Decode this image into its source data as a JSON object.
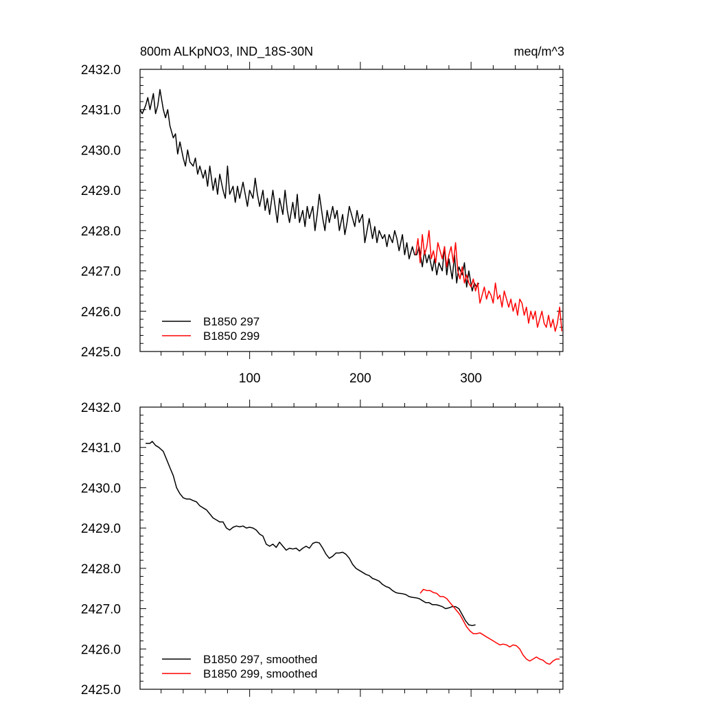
{
  "chart_data": [
    {
      "type": "line",
      "title_left": "800m ALKpNO3, IND_18S-30N",
      "title_right": "meq/m^3",
      "xlim": [
        1,
        383
      ],
      "ylim": [
        2425.0,
        2432.0
      ],
      "x_ticks": [
        100,
        200,
        300
      ],
      "y_ticks": [
        "2425.0",
        "2426.0",
        "2427.0",
        "2428.0",
        "2429.0",
        "2430.0",
        "2431.0",
        "2432.0"
      ],
      "legend_position": "bottom-left",
      "series": [
        {
          "name": "B1850 297",
          "color": "#000000",
          "x": [
            1,
            3,
            6,
            8,
            10,
            13,
            15,
            17,
            19,
            22,
            24,
            26,
            28,
            31,
            33,
            35,
            37,
            40,
            42,
            44,
            46,
            49,
            51,
            53,
            55,
            58,
            60,
            62,
            64,
            67,
            69,
            71,
            73,
            76,
            78,
            80,
            82,
            85,
            87,
            89,
            91,
            94,
            96,
            98,
            100,
            103,
            105,
            107,
            109,
            112,
            114,
            116,
            118,
            121,
            123,
            125,
            127,
            130,
            132,
            134,
            136,
            139,
            141,
            143,
            145,
            148,
            150,
            152,
            154,
            157,
            159,
            161,
            163,
            166,
            168,
            170,
            172,
            175,
            177,
            179,
            181,
            184,
            186,
            188,
            190,
            193,
            195,
            197,
            199,
            202,
            204,
            206,
            208,
            211,
            213,
            215,
            217,
            220,
            222,
            224,
            226,
            229,
            231,
            233,
            235,
            238,
            240,
            242,
            244,
            247,
            249,
            251,
            253,
            256,
            258,
            260,
            262,
            265,
            267,
            269,
            271,
            274,
            276,
            278,
            280,
            283,
            285,
            287,
            289,
            292,
            294,
            296,
            298,
            301,
            303,
            305,
            307
          ],
          "y": [
            2431.0,
            2430.9,
            2431.1,
            2431.3,
            2431.0,
            2431.4,
            2430.9,
            2431.1,
            2431.5,
            2431.0,
            2430.8,
            2431.0,
            2430.6,
            2430.3,
            2430.4,
            2429.9,
            2430.2,
            2429.8,
            2429.6,
            2430.0,
            2429.7,
            2429.6,
            2429.8,
            2429.4,
            2429.6,
            2429.3,
            2429.5,
            2429.1,
            2429.6,
            2429.0,
            2429.3,
            2428.9,
            2429.4,
            2429.0,
            2428.8,
            2429.6,
            2428.9,
            2429.1,
            2428.7,
            2429.1,
            2428.8,
            2429.2,
            2428.9,
            2428.6,
            2429.0,
            2428.8,
            2429.3,
            2428.9,
            2428.6,
            2429.0,
            2428.5,
            2428.8,
            2428.4,
            2429.0,
            2428.6,
            2428.2,
            2428.8,
            2428.4,
            2429.0,
            2428.5,
            2428.2,
            2428.7,
            2428.3,
            2428.9,
            2428.2,
            2428.5,
            2428.1,
            2428.6,
            2428.3,
            2428.6,
            2428.0,
            2428.4,
            2428.9,
            2428.3,
            2428.0,
            2428.5,
            2428.2,
            2428.6,
            2428.3,
            2428.5,
            2428.0,
            2428.4,
            2427.9,
            2428.2,
            2428.6,
            2428.3,
            2428.1,
            2428.5,
            2428.2,
            2428.4,
            2427.7,
            2428.0,
            2428.3,
            2427.8,
            2428.1,
            2427.7,
            2428.0,
            2427.8,
            2427.9,
            2427.6,
            2427.9,
            2427.7,
            2428.0,
            2427.8,
            2427.5,
            2427.9,
            2427.4,
            2427.7,
            2427.3,
            2427.6,
            2427.4,
            2427.4,
            2427.6,
            2427.1,
            2427.5,
            2427.2,
            2427.4,
            2427.0,
            2427.3,
            2426.9,
            2427.2,
            2427.0,
            2427.6,
            2426.9,
            2427.3,
            2426.8,
            2427.4,
            2426.7,
            2427.1,
            2426.9,
            2427.2,
            2426.6,
            2427.0,
            2426.5,
            2426.7,
            2426.6,
            2426.7
          ]
        },
        {
          "name": "B1850 299",
          "color": "#ff0000",
          "x": [
            250,
            252,
            254,
            256,
            258,
            260,
            262,
            264,
            266,
            268,
            270,
            272,
            274,
            276,
            278,
            280,
            282,
            284,
            286,
            288,
            290,
            292,
            294,
            296,
            298,
            300,
            302,
            304,
            306,
            308,
            310,
            312,
            314,
            316,
            318,
            320,
            322,
            324,
            326,
            328,
            330,
            332,
            334,
            336,
            338,
            340,
            342,
            344,
            346,
            348,
            350,
            352,
            354,
            356,
            358,
            360,
            362,
            364,
            366,
            368,
            370,
            372,
            374,
            376,
            378,
            380,
            382
          ],
          "y": [
            2427.4,
            2427.8,
            2427.2,
            2427.9,
            2427.4,
            2427.6,
            2428.0,
            2427.3,
            2427.5,
            2427.2,
            2427.7,
            2427.5,
            2427.3,
            2427.6,
            2427.1,
            2427.4,
            2427.6,
            2427.2,
            2427.7,
            2427.0,
            2426.8,
            2427.1,
            2426.7,
            2426.9,
            2426.7,
            2426.6,
            2426.8,
            2426.5,
            2426.7,
            2426.2,
            2426.4,
            2426.6,
            2426.3,
            2426.5,
            2426.4,
            2426.2,
            2426.7,
            2426.3,
            2426.4,
            2426.1,
            2426.5,
            2426.3,
            2426.1,
            2426.3,
            2426.0,
            2426.2,
            2425.9,
            2426.3,
            2426.2,
            2425.9,
            2426.1,
            2425.7,
            2426.0,
            2425.8,
            2426.0,
            2425.6,
            2425.8,
            2426.0,
            2425.7,
            2425.6,
            2425.9,
            2425.6,
            2425.8,
            2425.5,
            2425.7,
            2426.1,
            2425.5
          ]
        }
      ]
    },
    {
      "type": "line",
      "xlim": [
        1,
        383
      ],
      "ylim": [
        2425.0,
        2432.0
      ],
      "y_ticks": [
        "2425.0",
        "2426.0",
        "2427.0",
        "2428.0",
        "2429.0",
        "2430.0",
        "2431.0",
        "2432.0"
      ],
      "legend_position": "bottom-left",
      "series": [
        {
          "name": "B1850 297, smoothed",
          "color": "#000000",
          "x": [
            6,
            10,
            12,
            15,
            18,
            22,
            25,
            28,
            31,
            34,
            37,
            40,
            43,
            46,
            49,
            52,
            55,
            58,
            61,
            64,
            67,
            70,
            73,
            76,
            79,
            82,
            85,
            88,
            91,
            94,
            97,
            100,
            103,
            106,
            109,
            112,
            115,
            118,
            121,
            124,
            127,
            130,
            133,
            136,
            139,
            142,
            145,
            148,
            151,
            154,
            157,
            160,
            163,
            166,
            169,
            172,
            175,
            178,
            181,
            184,
            187,
            190,
            193,
            196,
            199,
            202,
            205,
            208,
            211,
            214,
            217,
            220,
            223,
            226,
            229,
            232,
            235,
            238,
            241,
            244,
            247,
            250,
            253,
            256,
            259,
            262,
            265,
            268,
            271,
            274,
            277,
            280,
            283,
            286,
            289,
            292,
            295,
            298,
            301,
            304
          ],
          "y": [
            2431.1,
            2431.1,
            2431.15,
            2431.05,
            2431.0,
            2430.9,
            2430.7,
            2430.5,
            2430.3,
            2430.0,
            2429.85,
            2429.75,
            2429.72,
            2429.72,
            2429.68,
            2429.65,
            2429.55,
            2429.5,
            2429.45,
            2429.35,
            2429.25,
            2429.2,
            2429.15,
            2429.15,
            2429.0,
            2428.95,
            2429.02,
            2429.05,
            2429.03,
            2429.05,
            2429.0,
            2429.02,
            2429.0,
            2428.95,
            2428.85,
            2428.8,
            2428.6,
            2428.55,
            2428.6,
            2428.52,
            2428.65,
            2428.55,
            2428.45,
            2428.5,
            2428.48,
            2428.5,
            2428.43,
            2428.5,
            2428.55,
            2428.5,
            2428.62,
            2428.65,
            2428.63,
            2428.5,
            2428.35,
            2428.25,
            2428.3,
            2428.38,
            2428.38,
            2428.4,
            2428.35,
            2428.25,
            2428.1,
            2428.0,
            2427.95,
            2427.9,
            2427.85,
            2427.82,
            2427.75,
            2427.72,
            2427.68,
            2427.6,
            2427.55,
            2427.52,
            2427.45,
            2427.4,
            2427.38,
            2427.37,
            2427.35,
            2427.3,
            2427.28,
            2427.27,
            2427.25,
            2427.2,
            2427.15,
            2427.15,
            2427.1,
            2427.1,
            2427.08,
            2427.05,
            2427.0,
            2427.02,
            2427.05,
            2427.05,
            2427.0,
            2426.85,
            2426.7,
            2426.6,
            2426.58,
            2426.6
          ]
        },
        {
          "name": "B1850 299, smoothed",
          "color": "#ff0000",
          "x": [
            254,
            257,
            260,
            263,
            266,
            269,
            272,
            275,
            278,
            281,
            284,
            287,
            290,
            293,
            296,
            299,
            302,
            305,
            308,
            311,
            314,
            317,
            320,
            323,
            326,
            329,
            332,
            335,
            338,
            341,
            344,
            347,
            350,
            353,
            356,
            359,
            362,
            365,
            368,
            371,
            374,
            377,
            380
          ],
          "y": [
            2427.38,
            2427.48,
            2427.45,
            2427.45,
            2427.4,
            2427.38,
            2427.3,
            2427.3,
            2427.25,
            2427.15,
            2427.05,
            2426.95,
            2426.85,
            2426.7,
            2426.55,
            2426.45,
            2426.38,
            2426.38,
            2426.4,
            2426.35,
            2426.3,
            2426.25,
            2426.2,
            2426.15,
            2426.1,
            2426.12,
            2426.1,
            2426.05,
            2426.1,
            2426.08,
            2426.0,
            2425.85,
            2425.75,
            2425.7,
            2425.75,
            2425.8,
            2425.75,
            2425.72,
            2425.65,
            2425.62,
            2425.7,
            2425.75,
            2425.75
          ]
        }
      ]
    }
  ]
}
